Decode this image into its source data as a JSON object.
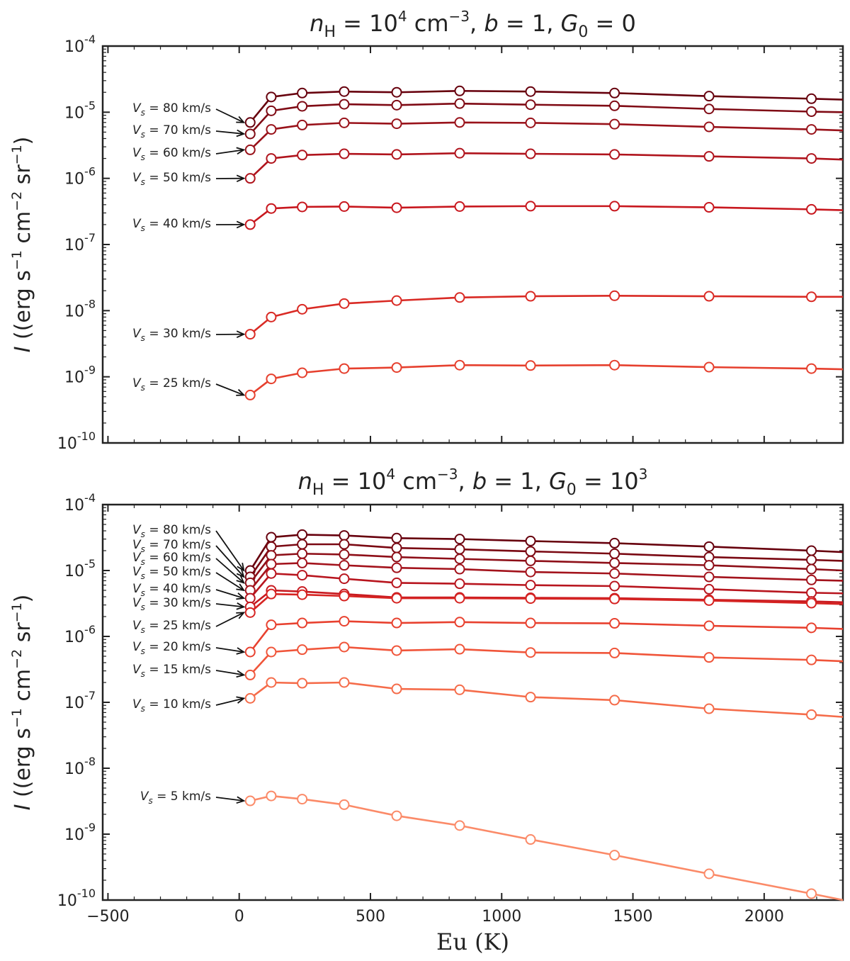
{
  "chart_data": [
    {
      "type": "line",
      "title": "n_H = 10^4 cm^-3, b = 1, G_0 = 0",
      "ylabel": "I ((erg s^-1 cm^-2 sr^-1)",
      "xlabel": "",
      "yscale": "log",
      "ylim": [
        1e-10,
        0.0001
      ],
      "xlim": [
        -520,
        2300
      ],
      "x": [
        42,
        122,
        240,
        400,
        600,
        840,
        1110,
        1430,
        1790,
        2180,
        2300
      ],
      "series": [
        {
          "name": "V_s = 80 km/s",
          "label": "V_s = 80 km/s",
          "color": "#67000d",
          "values": [
            7e-06,
            1.7e-05,
            1.95e-05,
            2.05e-05,
            2e-05,
            2.1e-05,
            2.05e-05,
            1.95e-05,
            1.75e-05,
            1.6e-05,
            1.55e-05
          ]
        },
        {
          "name": "V_s = 70 km/s",
          "label": "V_s = 70 km/s",
          "color": "#7f0a14",
          "values": [
            4.7e-06,
            1.05e-05,
            1.23e-05,
            1.32e-05,
            1.28e-05,
            1.35e-05,
            1.3e-05,
            1.25e-05,
            1.12e-05,
            1.02e-05,
            1e-05
          ]
        },
        {
          "name": "V_s = 60 km/s",
          "label": "V_s = 60 km/s",
          "color": "#99121a",
          "values": [
            2.7e-06,
            5.5e-06,
            6.4e-06,
            6.9e-06,
            6.7e-06,
            7e-06,
            6.9e-06,
            6.6e-06,
            6e-06,
            5.5e-06,
            5.3e-06
          ]
        },
        {
          "name": "V_s = 50 km/s",
          "label": "V_s = 50 km/s",
          "color": "#b0141d",
          "values": [
            1e-06,
            2e-06,
            2.25e-06,
            2.35e-06,
            2.3e-06,
            2.4e-06,
            2.35e-06,
            2.3e-06,
            2.15e-06,
            2e-06,
            1.92e-06
          ]
        },
        {
          "name": "V_s = 40 km/s",
          "label": "V_s = 40 km/s",
          "color": "#c8171e",
          "values": [
            2e-07,
            3.5e-07,
            3.7e-07,
            3.75e-07,
            3.6e-07,
            3.75e-07,
            3.8e-07,
            3.8e-07,
            3.65e-07,
            3.4e-07,
            3.3e-07
          ]
        },
        {
          "name": "V_s = 30 km/s",
          "label": "V_s = 30 km/s",
          "color": "#d92a24",
          "values": [
            4.4e-09,
            8e-09,
            1.05e-08,
            1.28e-08,
            1.42e-08,
            1.58e-08,
            1.65e-08,
            1.68e-08,
            1.65e-08,
            1.62e-08,
            1.62e-08
          ]
        },
        {
          "name": "V_s = 25 km/s",
          "label": "V_s = 25 km/s",
          "color": "#e6402e",
          "values": [
            5.3e-10,
            9.3e-10,
            1.15e-09,
            1.33e-09,
            1.38e-09,
            1.5e-09,
            1.48e-09,
            1.5e-09,
            1.4e-09,
            1.33e-09,
            1.3e-09
          ]
        }
      ]
    },
    {
      "type": "line",
      "title": "n_H = 10^4 cm^-3, b = 1, G_0 = 10^3",
      "ylabel": "I ((erg s^-1 cm^-2 sr^-1)",
      "xlabel": "Eu (K)",
      "yscale": "log",
      "ylim": [
        1e-10,
        0.0001
      ],
      "xlim": [
        -520,
        2300
      ],
      "x": [
        42,
        122,
        240,
        400,
        600,
        840,
        1110,
        1430,
        1790,
        2180,
        2300
      ],
      "xticks": [
        -500,
        0,
        500,
        1000,
        1500,
        2000
      ],
      "series": [
        {
          "name": "V_s = 80 km/s",
          "label": "V_s = 80 km/s",
          "color": "#67000d",
          "values": [
            1e-05,
            3.2e-05,
            3.5e-05,
            3.4e-05,
            3.1e-05,
            3e-05,
            2.8e-05,
            2.6e-05,
            2.3e-05,
            2e-05,
            1.9e-05
          ]
        },
        {
          "name": "V_s = 70 km/s",
          "label": "V_s = 70 km/s",
          "color": "#7a0812",
          "values": [
            8e-06,
            2.3e-05,
            2.5e-05,
            2.5e-05,
            2.2e-05,
            2.1e-05,
            1.95e-05,
            1.8e-05,
            1.6e-05,
            1.45e-05,
            1.4e-05
          ]
        },
        {
          "name": "V_s = 60 km/s",
          "label": "V_s = 60 km/s",
          "color": "#8e0f18",
          "values": [
            6.5e-06,
            1.7e-05,
            1.8e-05,
            1.75e-05,
            1.6e-05,
            1.5e-05,
            1.4e-05,
            1.3e-05,
            1.2e-05,
            1.05e-05,
            1e-05
          ]
        },
        {
          "name": "V_s = 50 km/s",
          "label": "V_s = 50 km/s",
          "color": "#a3131c",
          "values": [
            5e-06,
            1.25e-05,
            1.3e-05,
            1.2e-05,
            1.1e-05,
            1.05e-05,
            9.5e-06,
            9e-06,
            8e-06,
            7.2e-06,
            7e-06
          ]
        },
        {
          "name": "V_s = 40 km/s",
          "label": "V_s = 40 km/s",
          "color": "#b8151e",
          "values": [
            3.8e-06,
            9e-06,
            8.5e-06,
            7.5e-06,
            6.5e-06,
            6.3e-06,
            6e-06,
            5.8e-06,
            5.2e-06,
            4.6e-06,
            4.5e-06
          ]
        },
        {
          "name": "V_s = 30 km/s",
          "label": "V_s = 30 km/s",
          "color": "#c81a20",
          "values": [
            2.8e-06,
            5e-06,
            4.8e-06,
            4.4e-06,
            3.9e-06,
            3.9e-06,
            3.85e-06,
            3.8e-06,
            3.6e-06,
            3.4e-06,
            3.3e-06
          ]
        },
        {
          "name": "V_s = 25 km/s",
          "label": "V_s = 25 km/s",
          "color": "#d62422",
          "values": [
            2.3e-06,
            4.4e-06,
            4.3e-06,
            4.1e-06,
            3.8e-06,
            3.8e-06,
            3.75e-06,
            3.7e-06,
            3.5e-06,
            3.2e-06,
            3.1e-06
          ]
        },
        {
          "name": "V_s = 20 km/s",
          "label": "V_s = 20 km/s",
          "color": "#e8412f",
          "values": [
            5.8e-07,
            1.5e-06,
            1.6e-06,
            1.7e-06,
            1.6e-06,
            1.65e-06,
            1.6e-06,
            1.58e-06,
            1.45e-06,
            1.35e-06,
            1.3e-06
          ]
        },
        {
          "name": "V_s = 15 km/s",
          "label": "V_s = 15 km/s",
          "color": "#f0553a",
          "values": [
            2.6e-07,
            5.8e-07,
            6.3e-07,
            6.9e-07,
            6.1e-07,
            6.4e-07,
            5.7e-07,
            5.6e-07,
            4.8e-07,
            4.4e-07,
            4.2e-07
          ]
        },
        {
          "name": "V_s = 10 km/s",
          "label": "V_s = 10 km/s",
          "color": "#f56c4a",
          "values": [
            1.15e-07,
            2e-07,
            1.95e-07,
            2e-07,
            1.6e-07,
            1.55e-07,
            1.2e-07,
            1.08e-07,
            8e-08,
            6.5e-08,
            6e-08
          ]
        },
        {
          "name": "V_s = 5 km/s",
          "label": "V_s = 5 km/s",
          "color": "#fb8a68",
          "values": [
            3.2e-09,
            3.8e-09,
            3.4e-09,
            2.8e-09,
            1.9e-09,
            1.35e-09,
            8.3e-10,
            4.8e-10,
            2.5e-10,
            1.25e-10,
            1e-10
          ]
        }
      ]
    }
  ]
}
